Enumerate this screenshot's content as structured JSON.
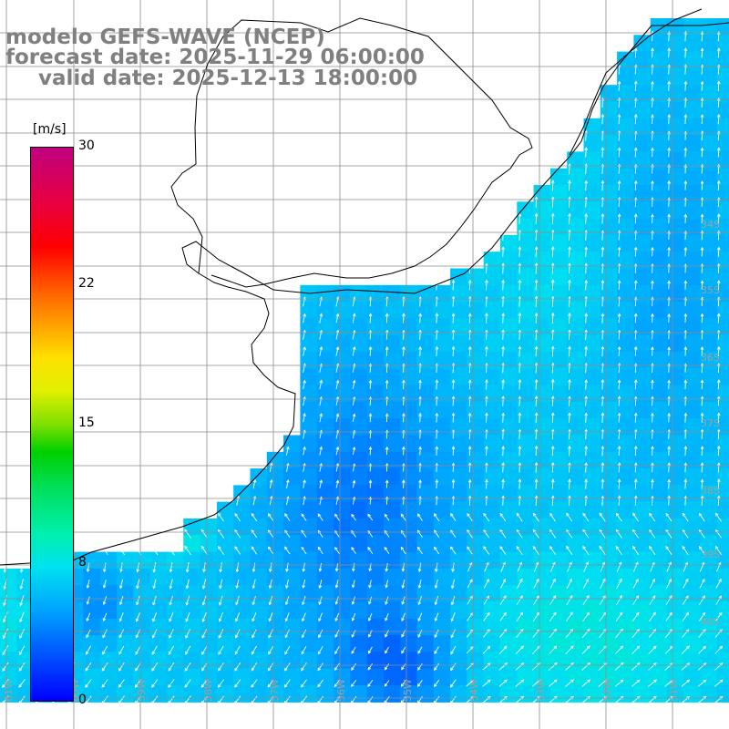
{
  "title": {
    "line1": "modelo GEFS-WAVE (NCEP)",
    "line2": "forecast date: 2025-11-29 06:00:00",
    "line3": "valid date: 2025-12-13 18:00:00"
  },
  "colorbar": {
    "unit": "[m/s]",
    "ticks": [
      "30",
      "22",
      "15",
      "8",
      "0"
    ],
    "min": 0,
    "max": 30
  },
  "lat_labels": [
    "34S",
    "35S",
    "36S",
    "37S",
    "38S",
    "39S",
    "40S"
  ],
  "lon_labels": [
    "61W",
    "60W",
    "59W",
    "58W",
    "57W",
    "56W",
    "55W",
    "54W",
    "53W",
    "52W",
    "51W"
  ],
  "colors": {
    "land": "#ffffff",
    "coast": "#000000",
    "grid": "#8c8c8c",
    "arrows": "#ffffff",
    "title": "#808080"
  }
}
